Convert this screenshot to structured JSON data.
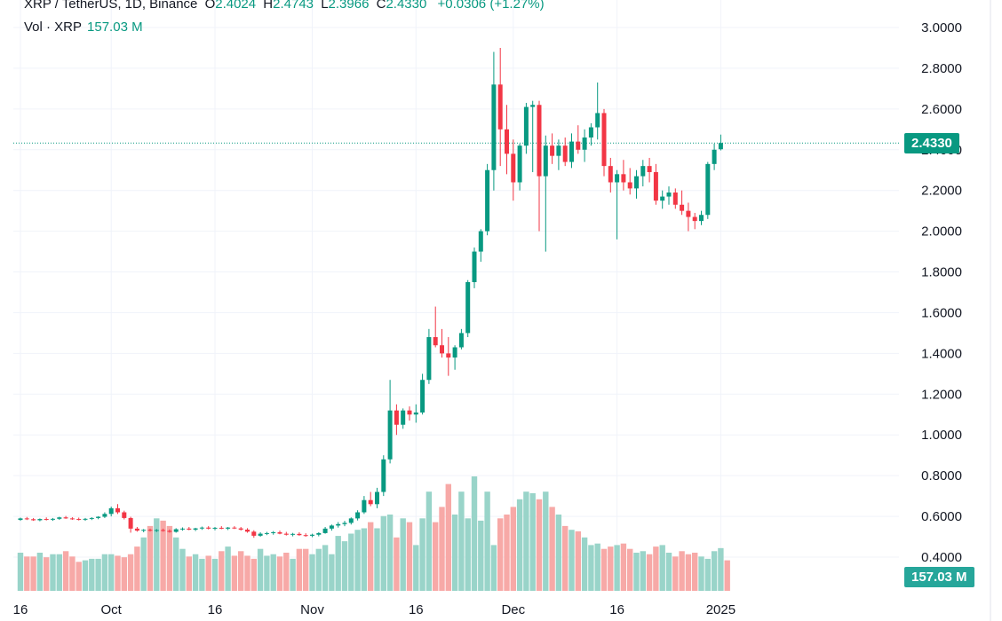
{
  "legend": {
    "symbol": "XRP / TetherUS, 1D, Binance",
    "open_label": "O",
    "open": "2.4024",
    "high_label": "H",
    "high": "2.4743",
    "low_label": "L",
    "low": "2.3966",
    "close_label": "C",
    "close": "2.4330",
    "change": "+0.0306 (+1.27%)",
    "volume_label": "Vol · XRP",
    "volume": "157.03 M"
  },
  "price_badge": "2.4330",
  "volume_badge": "157.03 M",
  "colors": {
    "up": "#089981",
    "down": "#f23645",
    "up_vol": "#99d4c9",
    "down_vol": "#f7a9a7",
    "grid": "#f0f3fa",
    "last_price_line": "#089981"
  },
  "chart_data": {
    "type": "candlestick",
    "y_axis": {
      "min": 0.36,
      "max": 3.06,
      "ticks": [
        "3.0000",
        "2.8000",
        "2.6000",
        "2.4000",
        "2.2000",
        "2.0000",
        "1.8000",
        "1.6000",
        "1.4000",
        "1.2000",
        "1.0000",
        "0.8000",
        "0.6000",
        "0.4000"
      ]
    },
    "x_axis": {
      "ticks": [
        "16",
        "Oct",
        "16",
        "Nov",
        "16",
        "Dec",
        "16",
        "2025"
      ],
      "tick_indices": [
        0,
        14,
        30,
        45,
        61,
        76,
        92,
        108
      ]
    },
    "last_price": 2.433,
    "candles": [
      [
        0.583,
        0.594,
        0.578,
        0.59
      ],
      [
        0.59,
        0.597,
        0.582,
        0.586
      ],
      [
        0.586,
        0.592,
        0.578,
        0.581
      ],
      [
        0.581,
        0.59,
        0.576,
        0.587
      ],
      [
        0.587,
        0.595,
        0.58,
        0.585
      ],
      [
        0.585,
        0.592,
        0.578,
        0.588
      ],
      [
        0.588,
        0.598,
        0.583,
        0.595
      ],
      [
        0.595,
        0.602,
        0.588,
        0.59
      ],
      [
        0.59,
        0.596,
        0.583,
        0.587
      ],
      [
        0.587,
        0.594,
        0.58,
        0.585
      ],
      [
        0.585,
        0.592,
        0.578,
        0.588
      ],
      [
        0.588,
        0.596,
        0.582,
        0.592
      ],
      [
        0.592,
        0.601,
        0.586,
        0.598
      ],
      [
        0.598,
        0.62,
        0.592,
        0.612
      ],
      [
        0.612,
        0.648,
        0.6,
        0.64
      ],
      [
        0.64,
        0.66,
        0.612,
        0.62
      ],
      [
        0.62,
        0.628,
        0.585,
        0.592
      ],
      [
        0.592,
        0.598,
        0.52,
        0.54
      ],
      [
        0.54,
        0.548,
        0.525,
        0.53
      ],
      [
        0.53,
        0.538,
        0.522,
        0.534
      ],
      [
        0.534,
        0.54,
        0.526,
        0.53
      ],
      [
        0.53,
        0.538,
        0.523,
        0.533
      ],
      [
        0.533,
        0.54,
        0.525,
        0.529
      ],
      [
        0.529,
        0.536,
        0.52,
        0.524
      ],
      [
        0.524,
        0.542,
        0.52,
        0.537
      ],
      [
        0.537,
        0.546,
        0.53,
        0.54
      ],
      [
        0.54,
        0.548,
        0.532,
        0.535
      ],
      [
        0.535,
        0.544,
        0.528,
        0.541
      ],
      [
        0.541,
        0.55,
        0.534,
        0.545
      ],
      [
        0.545,
        0.552,
        0.536,
        0.54
      ],
      [
        0.54,
        0.548,
        0.532,
        0.544
      ],
      [
        0.544,
        0.552,
        0.537,
        0.54
      ],
      [
        0.54,
        0.548,
        0.533,
        0.545
      ],
      [
        0.545,
        0.552,
        0.538,
        0.541
      ],
      [
        0.541,
        0.548,
        0.53,
        0.535
      ],
      [
        0.535,
        0.542,
        0.52,
        0.525
      ],
      [
        0.525,
        0.532,
        0.495,
        0.505
      ],
      [
        0.505,
        0.522,
        0.5,
        0.515
      ],
      [
        0.515,
        0.524,
        0.508,
        0.518
      ],
      [
        0.518,
        0.528,
        0.51,
        0.522
      ],
      [
        0.522,
        0.53,
        0.512,
        0.515
      ],
      [
        0.515,
        0.524,
        0.506,
        0.51
      ],
      [
        0.51,
        0.519,
        0.502,
        0.514
      ],
      [
        0.514,
        0.522,
        0.505,
        0.508
      ],
      [
        0.508,
        0.517,
        0.5,
        0.505
      ],
      [
        0.505,
        0.515,
        0.498,
        0.51
      ],
      [
        0.51,
        0.522,
        0.502,
        0.518
      ],
      [
        0.518,
        0.548,
        0.515,
        0.54
      ],
      [
        0.54,
        0.56,
        0.53,
        0.555
      ],
      [
        0.555,
        0.572,
        0.545,
        0.562
      ],
      [
        0.562,
        0.578,
        0.552,
        0.568
      ],
      [
        0.568,
        0.595,
        0.56,
        0.59
      ],
      [
        0.59,
        0.63,
        0.58,
        0.62
      ],
      [
        0.62,
        0.7,
        0.612,
        0.68
      ],
      [
        0.68,
        0.72,
        0.65,
        0.66
      ],
      [
        0.66,
        0.74,
        0.64,
        0.72
      ],
      [
        0.72,
        0.9,
        0.7,
        0.88
      ],
      [
        0.88,
        1.27,
        0.86,
        1.12
      ],
      [
        1.12,
        1.15,
        1.0,
        1.05
      ],
      [
        1.05,
        1.13,
        1.03,
        1.12
      ],
      [
        1.12,
        1.14,
        1.07,
        1.1
      ],
      [
        1.1,
        1.15,
        1.06,
        1.11
      ],
      [
        1.11,
        1.3,
        1.1,
        1.27
      ],
      [
        1.27,
        1.52,
        1.25,
        1.48
      ],
      [
        1.48,
        1.63,
        1.43,
        1.44
      ],
      [
        1.44,
        1.52,
        1.38,
        1.4
      ],
      [
        1.4,
        1.48,
        1.29,
        1.38
      ],
      [
        1.38,
        1.44,
        1.32,
        1.43
      ],
      [
        1.43,
        1.52,
        1.42,
        1.5
      ],
      [
        1.5,
        1.76,
        1.48,
        1.75
      ],
      [
        1.75,
        1.92,
        1.72,
        1.9
      ],
      [
        1.9,
        2.01,
        1.85,
        2.0
      ],
      [
        2.0,
        2.33,
        1.98,
        2.3
      ],
      [
        2.3,
        2.88,
        2.2,
        2.72
      ],
      [
        2.72,
        2.9,
        2.32,
        2.5
      ],
      [
        2.5,
        2.62,
        2.28,
        2.38
      ],
      [
        2.38,
        2.45,
        2.15,
        2.24
      ],
      [
        2.24,
        2.43,
        2.2,
        2.42
      ],
      [
        2.42,
        2.63,
        2.38,
        2.61
      ],
      [
        2.61,
        2.64,
        2.29,
        2.62
      ],
      [
        2.62,
        2.64,
        2.0,
        2.27
      ],
      [
        2.27,
        2.47,
        1.9,
        2.42
      ],
      [
        2.42,
        2.48,
        2.33,
        2.37
      ],
      [
        2.37,
        2.45,
        2.3,
        2.42
      ],
      [
        2.42,
        2.46,
        2.32,
        2.34
      ],
      [
        2.34,
        2.48,
        2.31,
        2.44
      ],
      [
        2.44,
        2.52,
        2.38,
        2.4
      ],
      [
        2.4,
        2.5,
        2.34,
        2.46
      ],
      [
        2.46,
        2.53,
        2.42,
        2.51
      ],
      [
        2.51,
        2.73,
        2.45,
        2.58
      ],
      [
        2.58,
        2.6,
        2.27,
        2.32
      ],
      [
        2.32,
        2.36,
        2.19,
        2.24
      ],
      [
        2.24,
        2.3,
        1.96,
        2.28
      ],
      [
        2.28,
        2.35,
        2.2,
        2.24
      ],
      [
        2.24,
        2.31,
        2.18,
        2.21
      ],
      [
        2.21,
        2.3,
        2.16,
        2.27
      ],
      [
        2.27,
        2.35,
        2.22,
        2.32
      ],
      [
        2.32,
        2.36,
        2.24,
        2.29
      ],
      [
        2.29,
        2.33,
        2.13,
        2.15
      ],
      [
        2.15,
        2.2,
        2.11,
        2.17
      ],
      [
        2.17,
        2.22,
        2.13,
        2.19
      ],
      [
        2.19,
        2.21,
        2.11,
        2.13
      ],
      [
        2.13,
        2.2,
        2.08,
        2.1
      ],
      [
        2.1,
        2.14,
        2.0,
        2.07
      ],
      [
        2.07,
        2.09,
        2.01,
        2.05
      ],
      [
        2.05,
        2.1,
        2.03,
        2.08
      ],
      [
        2.08,
        2.34,
        2.06,
        2.33
      ],
      [
        2.33,
        2.43,
        2.3,
        2.4
      ],
      [
        2.4024,
        2.4743,
        2.3966,
        2.433
      ]
    ],
    "volume": {
      "scale_max": 200,
      "values": [
        50,
        45,
        45,
        50,
        44,
        48,
        48,
        52,
        45,
        38,
        40,
        42,
        42,
        48,
        48,
        46,
        44,
        48,
        58,
        70,
        85,
        95,
        92,
        85,
        70,
        55,
        45,
        48,
        42,
        46,
        42,
        52,
        58,
        46,
        52,
        46,
        42,
        55,
        46,
        48,
        45,
        50,
        42,
        55,
        55,
        48,
        55,
        60,
        48,
        72,
        65,
        75,
        80,
        82,
        90,
        82,
        98,
        100,
        70,
        95,
        90,
        60,
        95,
        130,
        90,
        110,
        140,
        100,
        130,
        95,
        150,
        92,
        130,
        60,
        95,
        100,
        110,
        120,
        130,
        128,
        120,
        130,
        110,
        100,
        85,
        80,
        78,
        70,
        60,
        62,
        55,
        58,
        60,
        62,
        55,
        50,
        52,
        48,
        58,
        60,
        50,
        45,
        52,
        48,
        50,
        45,
        42,
        52,
        56,
        40
      ]
    }
  }
}
